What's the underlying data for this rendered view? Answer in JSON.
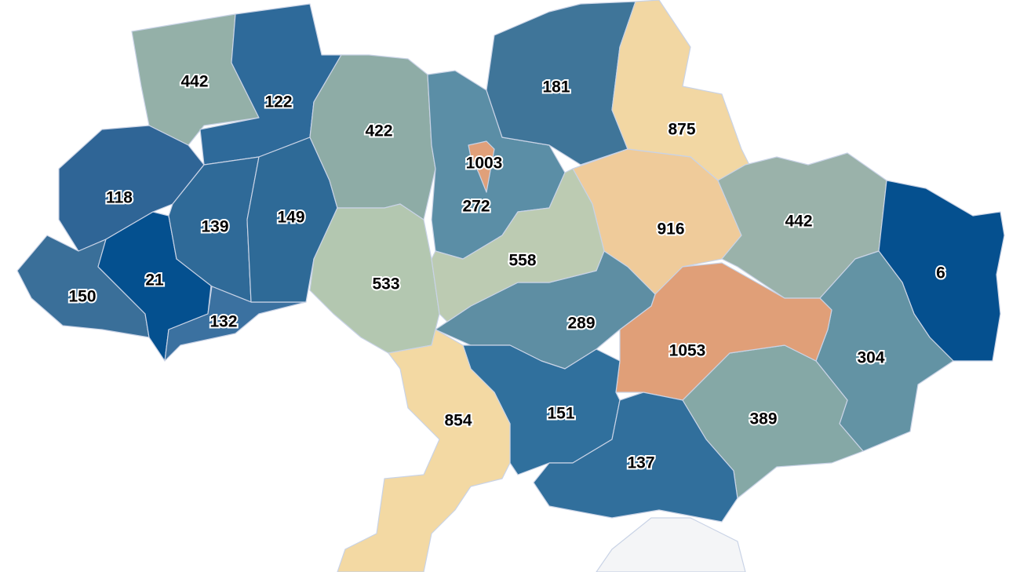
{
  "map": {
    "type": "choropleth",
    "colors": {
      "background": "#ffffff",
      "border": "#c9d3e6",
      "no_data": "#f4f5f7"
    },
    "regions": [
      {
        "id": "volyn",
        "value": 442,
        "label": "442",
        "color": "#94b0a8"
      },
      {
        "id": "rivne",
        "value": 122,
        "label": "122",
        "color": "#2e6a9a"
      },
      {
        "id": "lviv",
        "value": 118,
        "label": "118",
        "color": "#2f6596"
      },
      {
        "id": "zakarpattia",
        "value": 150,
        "label": "150",
        "color": "#3a6f99"
      },
      {
        "id": "ivano-frankivsk",
        "value": 21,
        "label": "21",
        "color": "#04508f"
      },
      {
        "id": "ternopil",
        "value": 139,
        "label": "139",
        "color": "#2f6a98"
      },
      {
        "id": "chernivtsi",
        "value": 132,
        "label": "132",
        "color": "#3b71a0"
      },
      {
        "id": "khmelnytskyi",
        "value": 149,
        "label": "149",
        "color": "#2e6a97"
      },
      {
        "id": "zhytomyr",
        "value": 422,
        "label": "422",
        "color": "#8eaca6"
      },
      {
        "id": "vinnytsia",
        "value": 533,
        "label": "533",
        "color": "#b3c7b0"
      },
      {
        "id": "kyiv-oblast",
        "value": 272,
        "label": "272",
        "color": "#5b8ea6"
      },
      {
        "id": "kyiv-city",
        "value": 1003,
        "label": "1003",
        "color": "#e0a07a"
      },
      {
        "id": "chernihiv",
        "value": 181,
        "label": "181",
        "color": "#3f7599"
      },
      {
        "id": "sumy",
        "value": 875,
        "label": "875",
        "color": "#f2d7a3"
      },
      {
        "id": "poltava",
        "value": 916,
        "label": "916",
        "color": "#efcb9a"
      },
      {
        "id": "kharkiv",
        "value": 442,
        "label": "442",
        "color": "#9ab2aa"
      },
      {
        "id": "luhansk",
        "value": 6,
        "label": "6",
        "color": "#05508f"
      },
      {
        "id": "donetsk",
        "value": 304,
        "label": "304",
        "color": "#6393a4"
      },
      {
        "id": "zaporizhzhia",
        "value": 389,
        "label": "389",
        "color": "#85a8a6"
      },
      {
        "id": "dnipropetrovsk",
        "value": 1053,
        "label": "1053",
        "color": "#e09f78"
      },
      {
        "id": "kirovohrad",
        "value": 289,
        "label": "289",
        "color": "#5e8ea3"
      },
      {
        "id": "cherkasy",
        "value": 558,
        "label": "558",
        "color": "#bccbb2"
      },
      {
        "id": "mykolaiv",
        "value": 151,
        "label": "151",
        "color": "#30709d"
      },
      {
        "id": "kherson",
        "value": 137,
        "label": "137",
        "color": "#316f9c"
      },
      {
        "id": "odesa",
        "value": 854,
        "label": "854",
        "color": "#f3d9a3"
      },
      {
        "id": "crimea",
        "value": null,
        "label": "",
        "color": "#f4f5f7"
      }
    ]
  }
}
